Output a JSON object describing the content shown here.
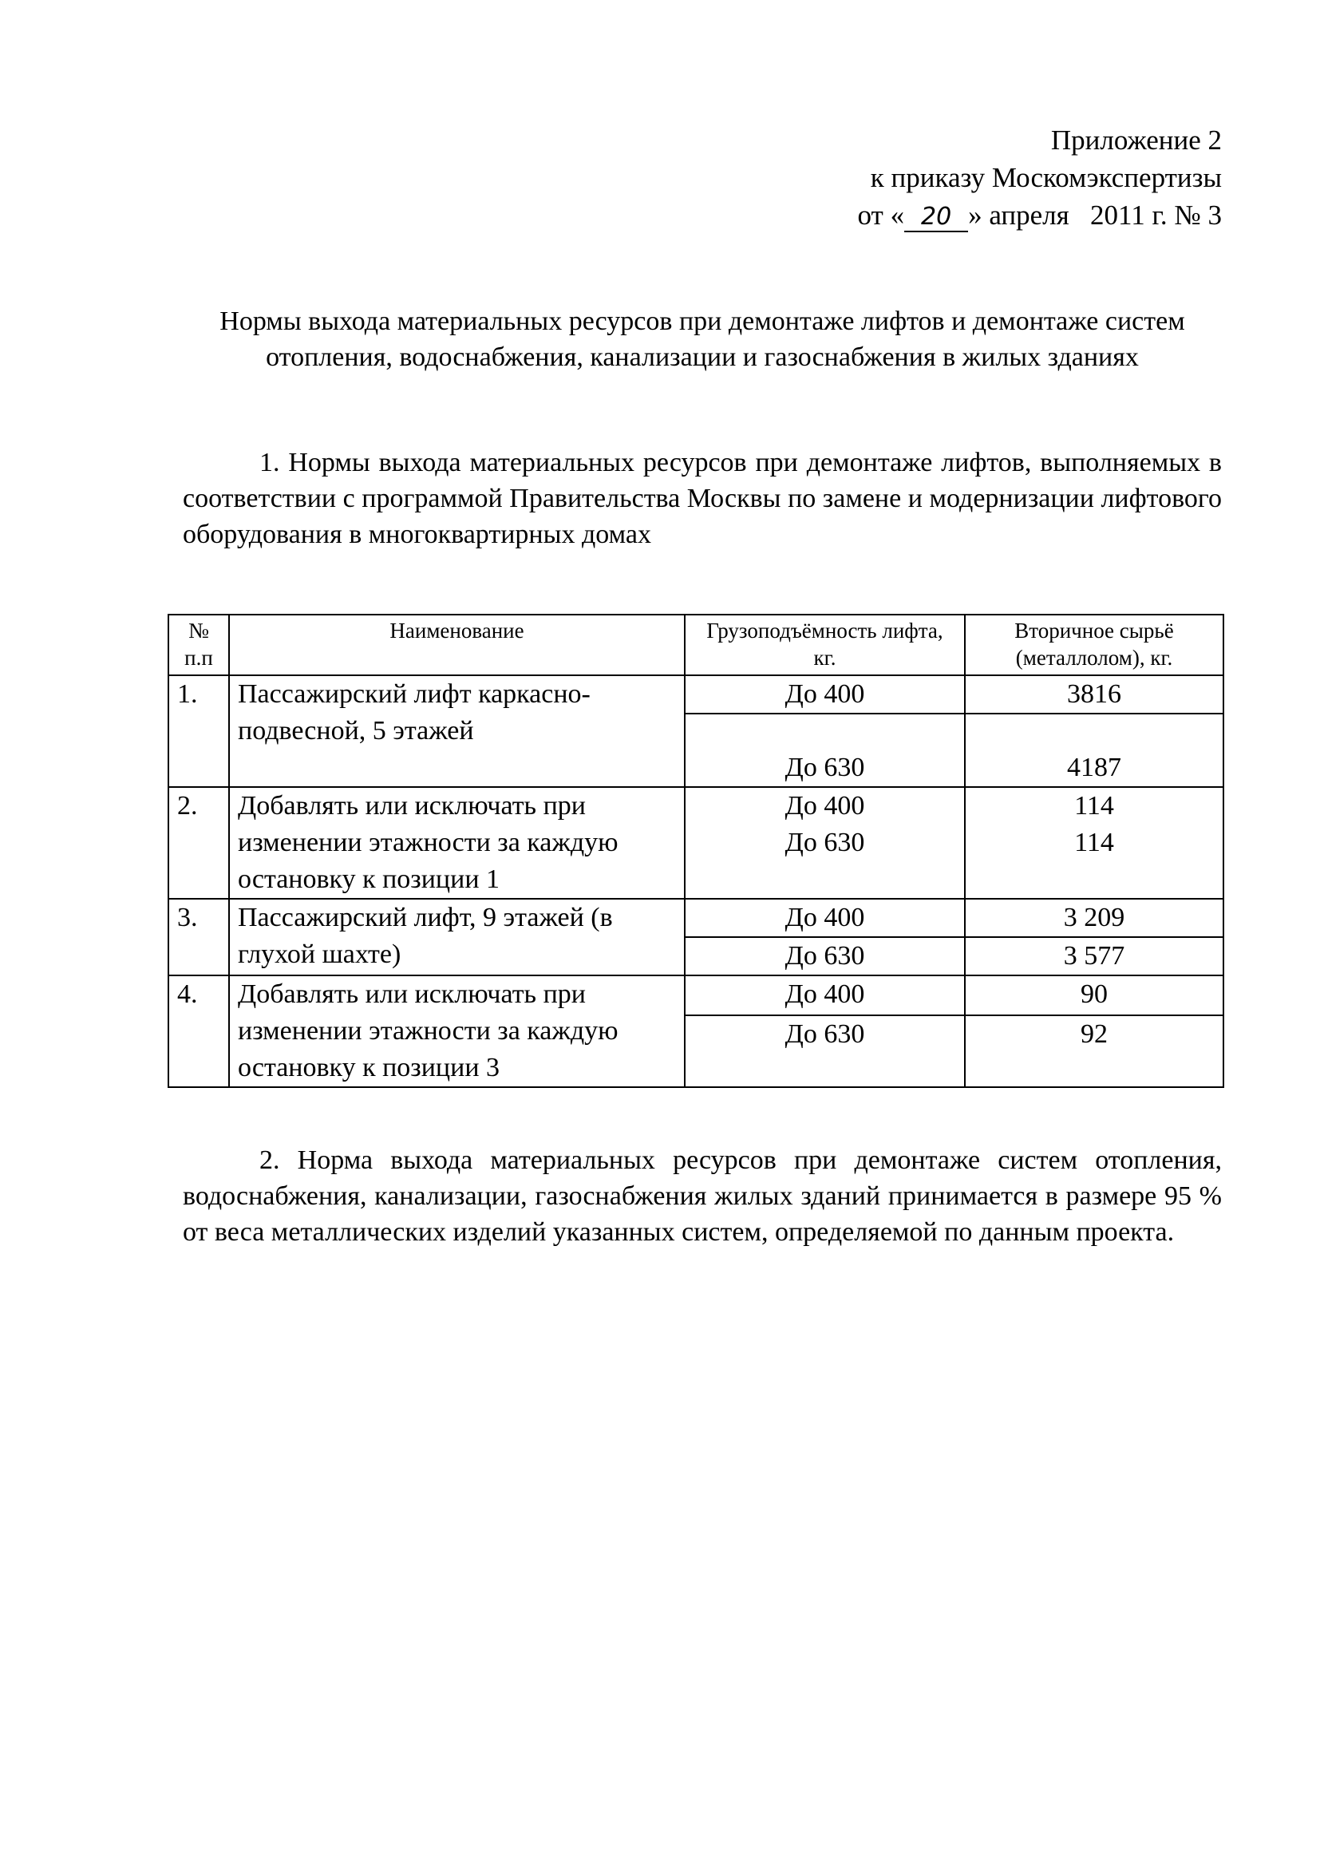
{
  "header": {
    "line1": "Приложение 2",
    "line2": "к приказу Москомэкспертизы",
    "date_prefix": "от «",
    "date_day": "20",
    "date_suffix": "» апреля   2011 г. № 3"
  },
  "title": "Нормы выхода материальных ресурсов при демонтаже лифтов и демонтаже систем  отопления, водоснабжения, канализации и газоснабжения в жилых зданиях",
  "section1": "1. Нормы выхода материальных ресурсов при демонтаже лифтов, выполняемых в соответствии с программой Правительства Москвы по замене и модернизации лифтового оборудования в многоквартирных домах",
  "table": {
    "headers": [
      "№ п.п",
      "Наименование",
      "Грузоподъёмность лифта,  кг.",
      "Вторичное сырьё (металлолом),  кг."
    ],
    "rows": [
      {
        "num": "1.",
        "name": "Пассажирский лифт каркасно-подвесной,  5 этажей",
        "cap": [
          "До 400",
          "До 630"
        ],
        "scrap": [
          "3816",
          "4187"
        ]
      },
      {
        "num": "2.",
        "name": "Добавлять или исключать при изменении этажности за каждую остановку к позиции 1",
        "cap": [
          "До 400",
          "До 630"
        ],
        "scrap": [
          "114",
          "114"
        ]
      },
      {
        "num": "3.",
        "name": "Пассажирский лифт, 9 этажей (в глухой шахте)",
        "cap": [
          "До 400",
          "До 630"
        ],
        "scrap": [
          "3 209",
          "3 577"
        ]
      },
      {
        "num": "4.",
        "name": "Добавлять или исключать при изменении этажности за каждую остановку к позиции 3",
        "cap": [
          "До 400",
          "До 630"
        ],
        "scrap": [
          "90",
          "92"
        ]
      }
    ]
  },
  "section2": "2. Норма выхода  материальных ресурсов при демонтаже систем отопления, водоснабжения, канализации, газоснабжения жилых зданий принимается  в размере 95 % от веса  металлических изделий указанных систем, определяемой  по данным проекта."
}
